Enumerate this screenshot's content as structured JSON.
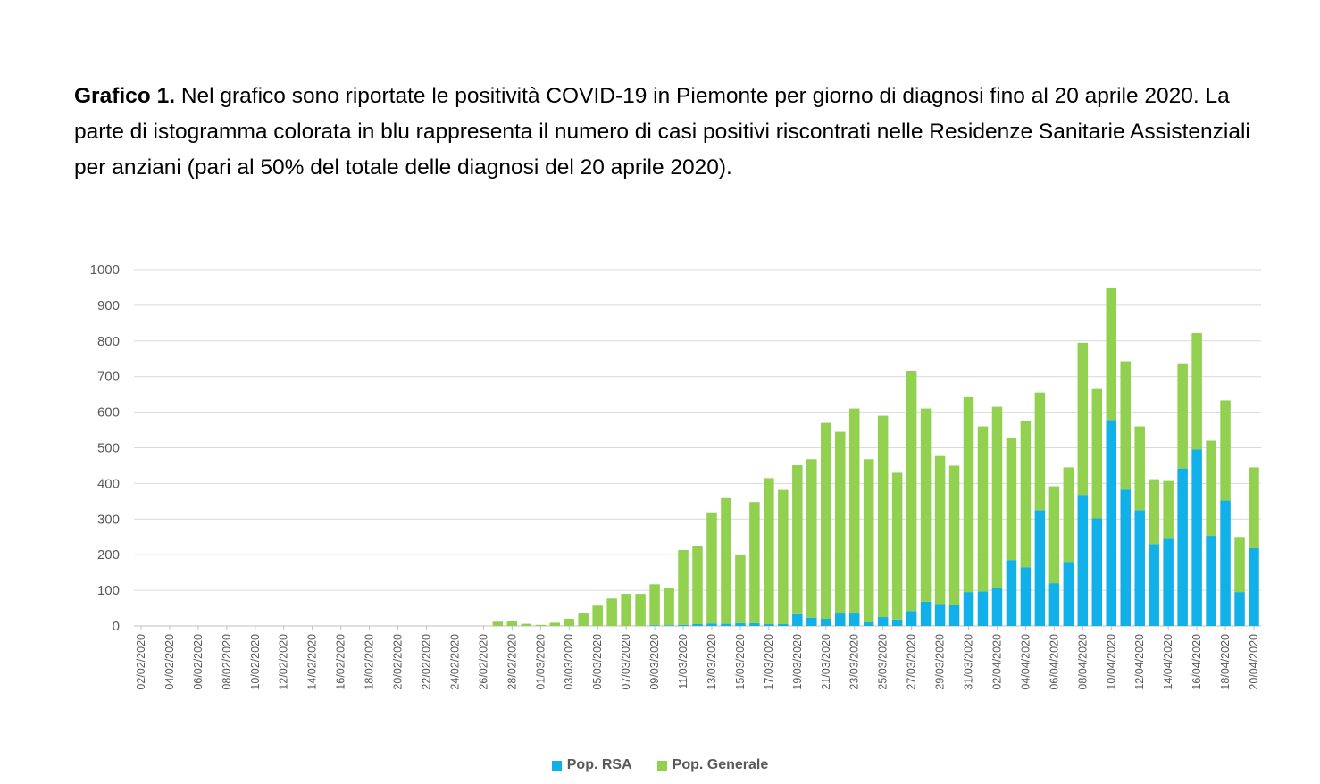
{
  "caption": {
    "bold": "Grafico 1.",
    "text": " Nel grafico sono riportate le positività COVID-19 in Piemonte per giorno di diagnosi fino al 20 aprile 2020. La parte di istogramma colorata in blu rappresenta il numero di casi positivi riscontrati nelle Residenze Sanitarie Assistenziali per anziani (pari al 50% del totale delle diagnosi del 20 aprile 2020)."
  },
  "colors": {
    "rsa": "#12b0e8",
    "generale": "#92d050",
    "grid": "#d9d9d9",
    "axis": "#bfbfbf"
  },
  "chart_data": {
    "type": "bar",
    "stacked": true,
    "title": "",
    "xlabel": "",
    "ylabel": "",
    "ylim": [
      0,
      1000
    ],
    "yticks": [
      0,
      100,
      200,
      300,
      400,
      500,
      600,
      700,
      800,
      900,
      1000
    ],
    "categories": [
      "02/02/2020",
      "03/02/2020",
      "04/02/2020",
      "05/02/2020",
      "06/02/2020",
      "07/02/2020",
      "08/02/2020",
      "09/02/2020",
      "10/02/2020",
      "11/02/2020",
      "12/02/2020",
      "13/02/2020",
      "14/02/2020",
      "15/02/2020",
      "16/02/2020",
      "17/02/2020",
      "18/02/2020",
      "19/02/2020",
      "20/02/2020",
      "21/02/2020",
      "22/02/2020",
      "23/02/2020",
      "24/02/2020",
      "25/02/2020",
      "26/02/2020",
      "27/02/2020",
      "28/02/2020",
      "29/02/2020",
      "01/03/2020",
      "02/03/2020",
      "03/03/2020",
      "04/03/2020",
      "05/03/2020",
      "06/03/2020",
      "07/03/2020",
      "08/03/2020",
      "09/03/2020",
      "10/03/2020",
      "11/03/2020",
      "12/03/2020",
      "13/03/2020",
      "14/03/2020",
      "15/03/2020",
      "16/03/2020",
      "17/03/2020",
      "18/03/2020",
      "19/03/2020",
      "20/03/2020",
      "21/03/2020",
      "22/03/2020",
      "23/03/2020",
      "24/03/2020",
      "25/03/2020",
      "26/03/2020",
      "27/03/2020",
      "28/03/2020",
      "29/03/2020",
      "30/03/2020",
      "31/03/2020",
      "01/04/2020",
      "02/04/2020",
      "03/04/2020",
      "04/04/2020",
      "05/04/2020",
      "06/04/2020",
      "07/04/2020",
      "08/04/2020",
      "09/04/2020",
      "10/04/2020",
      "11/04/2020",
      "12/04/2020",
      "13/04/2020",
      "14/04/2020",
      "15/04/2020",
      "16/04/2020",
      "17/04/2020",
      "18/04/2020",
      "19/04/2020",
      "20/04/2020"
    ],
    "xticklabels": [
      "02/02/2020",
      "04/02/2020",
      "06/02/2020",
      "08/02/2020",
      "10/02/2020",
      "12/02/2020",
      "14/02/2020",
      "16/02/2020",
      "18/02/2020",
      "20/02/2020",
      "22/02/2020",
      "24/02/2020",
      "26/02/2020",
      "28/02/2020",
      "01/03/2020",
      "03/03/2020",
      "05/03/2020",
      "07/03/2020",
      "09/03/2020",
      "11/03/2020",
      "13/03/2020",
      "15/03/2020",
      "17/03/2020",
      "19/03/2020",
      "21/03/2020",
      "23/03/2020",
      "25/03/2020",
      "27/03/2020",
      "29/03/2020",
      "31/03/2020",
      "02/04/2020",
      "04/04/2020",
      "06/04/2020",
      "08/04/2020",
      "10/04/2020",
      "12/04/2020",
      "14/04/2020",
      "16/04/2020",
      "18/04/2020",
      "20/04/2020"
    ],
    "series": [
      {
        "name": "Pop. RSA",
        "values": [
          0,
          0,
          0,
          0,
          0,
          0,
          0,
          0,
          0,
          0,
          0,
          0,
          0,
          0,
          0,
          0,
          0,
          0,
          0,
          0,
          0,
          0,
          0,
          0,
          0,
          0,
          0,
          0,
          0,
          0,
          0,
          0,
          0,
          0,
          0,
          0,
          2,
          2,
          3,
          5,
          7,
          6,
          8,
          8,
          5,
          5,
          33,
          23,
          20,
          35,
          35,
          10,
          25,
          18,
          42,
          68,
          62,
          60,
          95,
          97,
          107,
          185,
          165,
          325,
          120,
          180,
          368,
          302,
          578,
          383,
          325,
          230,
          245,
          442,
          495,
          253,
          352,
          95,
          218
        ]
      },
      {
        "name": "Pop. Generale",
        "values": [
          0,
          0,
          0,
          0,
          0,
          0,
          0,
          0,
          0,
          0,
          0,
          0,
          0,
          0,
          0,
          0,
          0,
          0,
          0,
          0,
          0,
          0,
          0,
          0,
          0,
          12,
          14,
          6,
          3,
          9,
          20,
          35,
          57,
          77,
          90,
          90,
          115,
          105,
          210,
          220,
          312,
          353,
          190,
          340,
          410,
          377,
          418,
          445,
          550,
          510,
          575,
          458,
          565,
          412,
          673,
          542,
          415,
          390,
          547,
          463,
          508,
          343,
          410,
          330,
          272,
          265,
          427,
          363,
          372,
          360,
          235,
          182,
          162,
          293,
          327,
          267,
          281,
          155,
          227
        ]
      }
    ]
  },
  "legend": {
    "rsa_label": "Pop. RSA",
    "generale_label": "Pop. Generale"
  }
}
